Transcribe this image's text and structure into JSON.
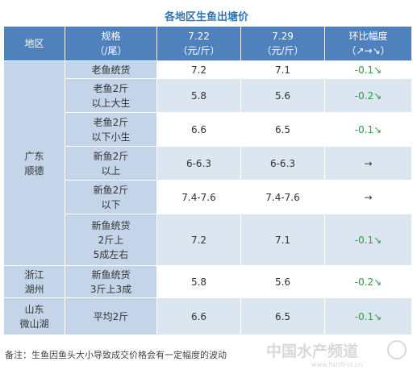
{
  "title": "各地区生鱼出塘价",
  "headers": {
    "region": "地区",
    "spec_l1": "规格",
    "spec_l2": "（/尾）",
    "d1_l1": "7.22",
    "d1_l2": "（元/斤）",
    "d2_l1": "7.29",
    "d2_l2": "（元/斤）",
    "chg_l1": "环比幅度",
    "chg_l2": "（↗→↘）"
  },
  "regions": [
    {
      "l1": "广东",
      "l2": "顺德"
    },
    {
      "l1": "浙江",
      "l2": "湖州"
    },
    {
      "l1": "山东",
      "l2": "微山湖"
    }
  ],
  "rows": [
    {
      "spec": [
        "老鱼统货"
      ],
      "p1": "7.2",
      "p2": "7.1",
      "chg": "-0.1↘"
    },
    {
      "spec": [
        "老鱼2斤",
        "以上大生"
      ],
      "p1": "5.8",
      "p2": "5.6",
      "chg": "-0.2↘"
    },
    {
      "spec": [
        "老鱼2斤",
        "以下小生"
      ],
      "p1": "6.6",
      "p2": "6.5",
      "chg": "-0.1↘"
    },
    {
      "spec": [
        "新鱼2斤",
        "以上"
      ],
      "p1": "6-6.3",
      "p2": "6-6.3",
      "chg": "→"
    },
    {
      "spec": [
        "新鱼2斤",
        "以下"
      ],
      "p1": "7.4-7.6",
      "p2": "7.4-7.6",
      "chg": "→"
    },
    {
      "spec": [
        "新鱼统货",
        "2斤上",
        "5成左右"
      ],
      "p1": "7.2",
      "p2": "7.1",
      "chg": "-0.1↘"
    },
    {
      "spec": [
        "新鱼统货",
        "3斤上3成"
      ],
      "p1": "5.8",
      "p2": "5.6",
      "chg": "-0.2↘"
    },
    {
      "spec": [
        "平均2斤"
      ],
      "p1": "6.6",
      "p2": "6.5",
      "chg": "-0.1↘"
    }
  ],
  "note": "备注：生鱼因鱼头大小导致成交价格会有一定幅度的波动",
  "watermark": {
    "text": "中国水产频道",
    "url": "www.fishfirst.cn"
  }
}
